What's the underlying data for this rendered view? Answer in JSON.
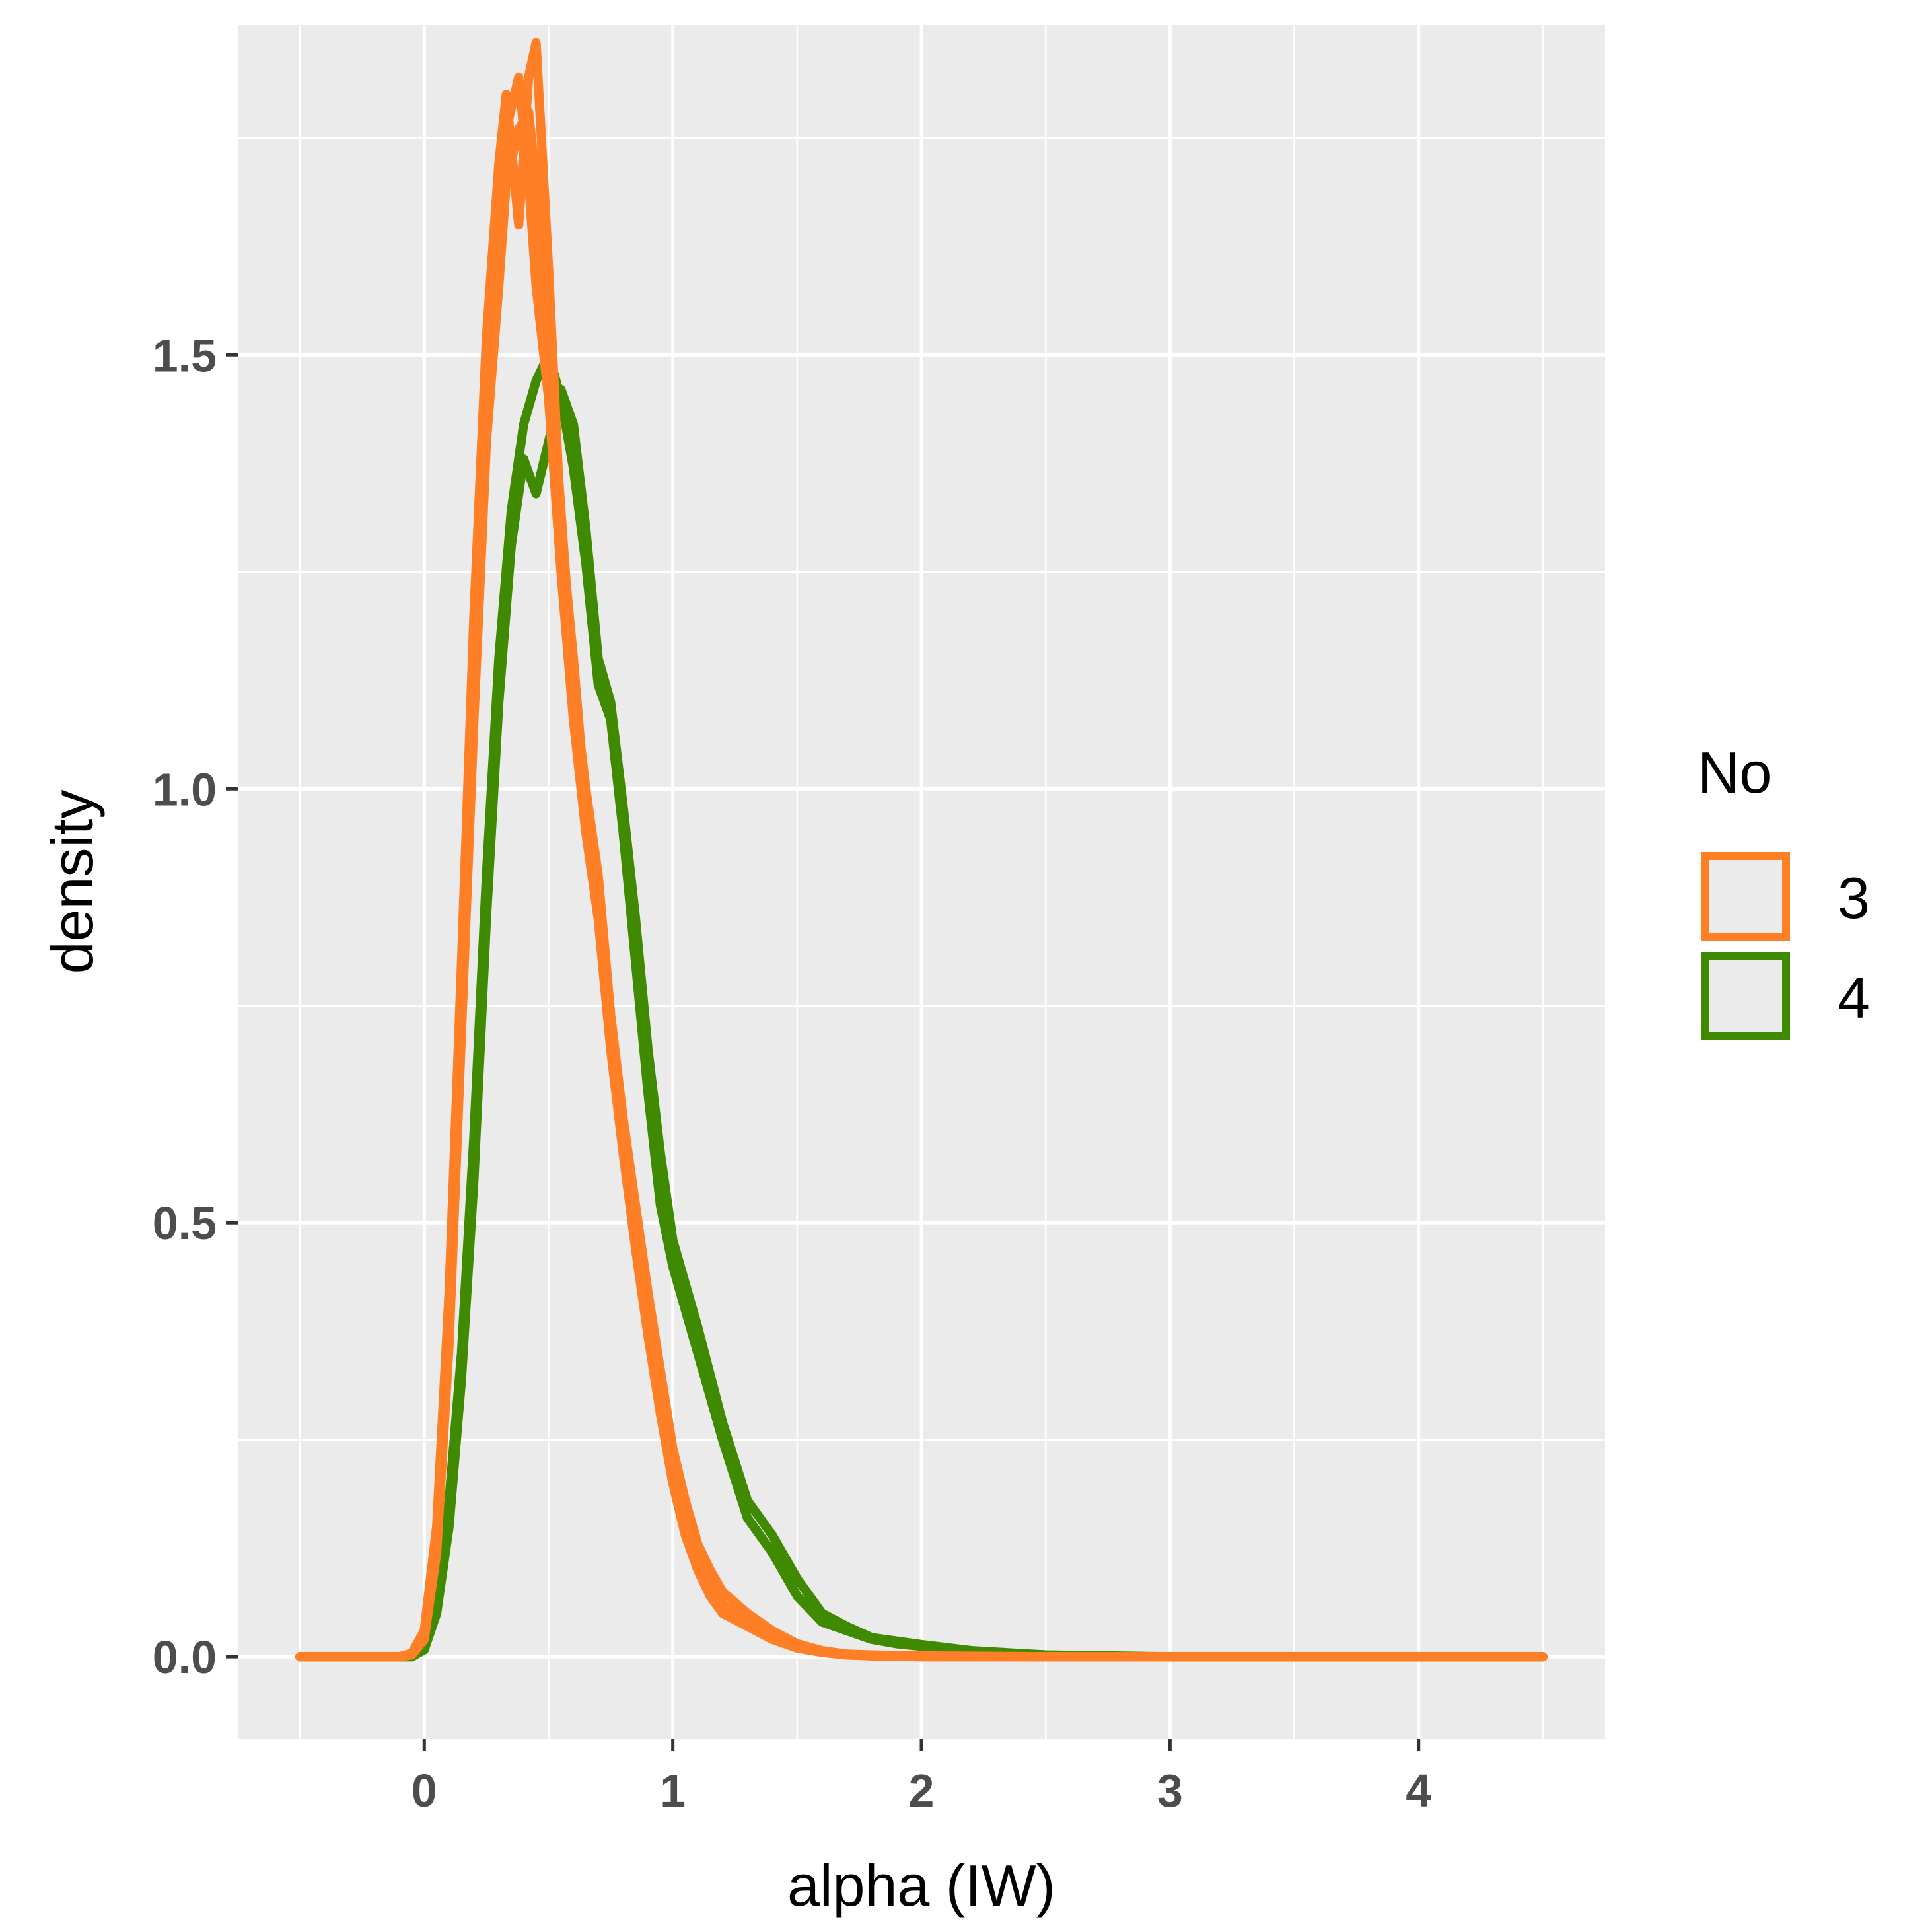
{
  "chart_data": {
    "type": "line",
    "title": "",
    "xlabel": "alpha (IW)",
    "ylabel": "density",
    "xlim": [
      -0.75,
      4.75
    ],
    "ylim": [
      -0.095,
      1.88
    ],
    "x_ticks": [
      0,
      1,
      2,
      3,
      4
    ],
    "x_tick_labels": [
      "0",
      "1",
      "2",
      "3",
      "4"
    ],
    "y_ticks": [
      0.0,
      0.5,
      1.0,
      1.5
    ],
    "y_tick_labels": [
      "0.0",
      "0.5",
      "1.0",
      "1.5"
    ],
    "grid": true,
    "legend": {
      "title": "No",
      "position": "right",
      "entries": [
        {
          "label": "3",
          "color": "#FF7F27"
        },
        {
          "label": "4",
          "color": "#3F8A00"
        }
      ]
    },
    "series": [
      {
        "group": "4",
        "color": "#3F8A00",
        "x": [
          -0.5,
          -0.05,
          0.0,
          0.05,
          0.1,
          0.15,
          0.2,
          0.25,
          0.3,
          0.35,
          0.4,
          0.45,
          0.5,
          0.55,
          0.6,
          0.65,
          0.7,
          0.75,
          0.8,
          0.85,
          0.9,
          0.95,
          1.0,
          1.1,
          1.2,
          1.3,
          1.4,
          1.5,
          1.6,
          1.7,
          1.8,
          1.9,
          2.0,
          2.2,
          2.5,
          3.0,
          4.5
        ],
        "y": [
          0.0,
          0.0,
          0.01,
          0.06,
          0.18,
          0.35,
          0.6,
          0.9,
          1.15,
          1.32,
          1.42,
          1.47,
          1.5,
          1.45,
          1.37,
          1.26,
          1.12,
          1.08,
          0.95,
          0.8,
          0.65,
          0.52,
          0.45,
          0.35,
          0.25,
          0.16,
          0.12,
          0.07,
          0.04,
          0.03,
          0.02,
          0.015,
          0.012,
          0.006,
          0.001,
          0.0,
          0.0
        ]
      },
      {
        "group": "4",
        "color": "#3F8A00",
        "x": [
          -0.5,
          -0.05,
          0.0,
          0.05,
          0.1,
          0.15,
          0.2,
          0.25,
          0.3,
          0.35,
          0.4,
          0.45,
          0.5,
          0.55,
          0.6,
          0.65,
          0.7,
          0.75,
          0.8,
          0.85,
          0.9,
          0.95,
          1.0,
          1.1,
          1.2,
          1.3,
          1.4,
          1.5,
          1.6,
          1.7,
          1.8,
          1.9,
          2.0,
          2.2,
          2.5,
          3.0,
          4.5
        ],
        "y": [
          0.0,
          0.0,
          0.008,
          0.05,
          0.15,
          0.32,
          0.55,
          0.85,
          1.1,
          1.28,
          1.38,
          1.34,
          1.4,
          1.46,
          1.42,
          1.3,
          1.15,
          1.1,
          0.98,
          0.85,
          0.7,
          0.58,
          0.48,
          0.38,
          0.27,
          0.18,
          0.14,
          0.09,
          0.05,
          0.035,
          0.022,
          0.018,
          0.014,
          0.007,
          0.002,
          0.0,
          0.0
        ]
      },
      {
        "group": "3",
        "color": "#FF7F27",
        "x": [
          -0.5,
          -0.1,
          -0.05,
          0.0,
          0.05,
          0.1,
          0.15,
          0.2,
          0.25,
          0.3,
          0.33,
          0.38,
          0.42,
          0.45,
          0.5,
          0.55,
          0.6,
          0.65,
          0.7,
          0.75,
          0.8,
          0.85,
          0.9,
          0.95,
          1.0,
          1.05,
          1.1,
          1.15,
          1.2,
          1.3,
          1.4,
          1.5,
          1.6,
          1.7,
          1.8,
          2.0,
          2.5,
          3.0,
          4.5
        ],
        "y": [
          0.0,
          0.0,
          0.004,
          0.03,
          0.15,
          0.42,
          0.8,
          1.2,
          1.52,
          1.72,
          1.8,
          1.65,
          1.82,
          1.86,
          1.6,
          1.3,
          1.15,
          0.98,
          0.88,
          0.72,
          0.6,
          0.5,
          0.4,
          0.32,
          0.22,
          0.16,
          0.12,
          0.09,
          0.06,
          0.04,
          0.025,
          0.012,
          0.006,
          0.003,
          0.002,
          0.001,
          0.0,
          0.0,
          0.0
        ]
      },
      {
        "group": "3",
        "color": "#FF7F27",
        "x": [
          -0.5,
          -0.1,
          -0.05,
          0.0,
          0.05,
          0.1,
          0.15,
          0.2,
          0.25,
          0.3,
          0.33,
          0.38,
          0.42,
          0.45,
          0.5,
          0.55,
          0.6,
          0.65,
          0.7,
          0.75,
          0.8,
          0.85,
          0.9,
          0.95,
          1.0,
          1.05,
          1.1,
          1.15,
          1.2,
          1.3,
          1.4,
          1.5,
          1.6,
          1.7,
          1.8,
          2.0,
          2.5,
          3.0,
          4.5
        ],
        "y": [
          0.0,
          0.0,
          0.003,
          0.025,
          0.13,
          0.4,
          0.78,
          1.15,
          1.45,
          1.62,
          1.76,
          1.82,
          1.7,
          1.58,
          1.45,
          1.25,
          1.08,
          0.95,
          0.85,
          0.7,
          0.58,
          0.47,
          0.37,
          0.28,
          0.2,
          0.14,
          0.1,
          0.07,
          0.05,
          0.035,
          0.02,
          0.01,
          0.005,
          0.002,
          0.001,
          0.0,
          0.0,
          0.0,
          0.0
        ]
      },
      {
        "group": "3",
        "color": "#FF7F27",
        "x": [
          -0.5,
          -0.1,
          -0.05,
          0.0,
          0.05,
          0.1,
          0.15,
          0.2,
          0.25,
          0.3,
          0.33,
          0.38,
          0.42,
          0.45,
          0.5,
          0.55,
          0.6,
          0.65,
          0.7,
          0.75,
          0.8,
          0.85,
          0.9,
          0.95,
          1.0,
          1.05,
          1.1,
          1.15,
          1.2,
          1.3,
          1.4,
          1.5,
          1.6,
          1.7,
          1.8,
          2.0,
          2.5,
          3.0,
          4.5
        ],
        "y": [
          0.0,
          0.0,
          0.002,
          0.02,
          0.12,
          0.36,
          0.72,
          1.08,
          1.4,
          1.58,
          1.7,
          1.76,
          1.78,
          1.7,
          1.52,
          1.32,
          1.12,
          1.0,
          0.9,
          0.74,
          0.62,
          0.52,
          0.42,
          0.33,
          0.24,
          0.18,
          0.13,
          0.1,
          0.075,
          0.05,
          0.03,
          0.015,
          0.007,
          0.003,
          0.001,
          0.0,
          0.0,
          0.0,
          0.0
        ]
      }
    ]
  }
}
